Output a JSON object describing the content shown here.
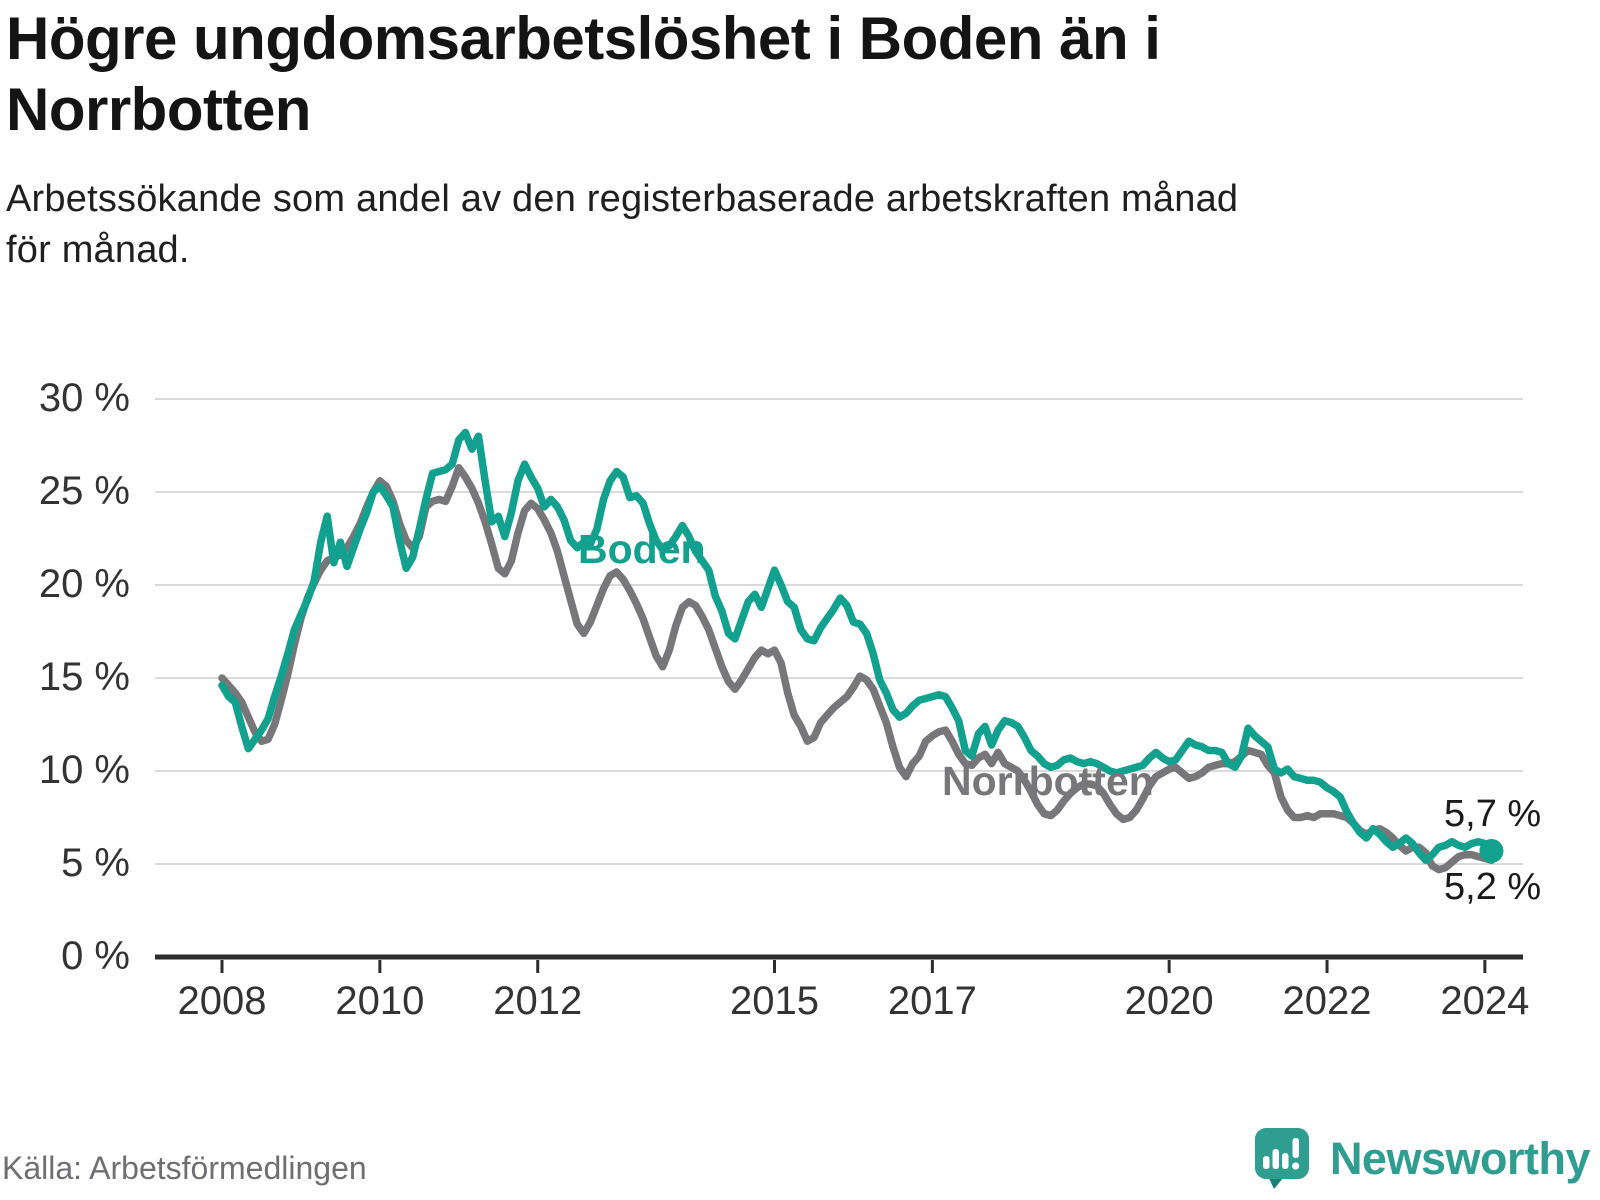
{
  "chart_data": {
    "type": "line",
    "title": "Högre ungdomsarbetslöshet i Boden än i\nNorrbotten",
    "subtitle": "Arbetssökande som andel av den registerbaserade arbetskraften månad\nför månad.",
    "xlabel": "",
    "ylabel": "",
    "ylim": [
      0,
      30
    ],
    "xlim": [
      2008,
      2024.2
    ],
    "grid": "horizontal",
    "legend_position": "inline-labels",
    "x_start": 2008.0,
    "x_step_years": 0.0833333,
    "y_ticks": [
      {
        "value": 30,
        "label": "30 %"
      },
      {
        "value": 25,
        "label": "25 %"
      },
      {
        "value": 20,
        "label": "20 %"
      },
      {
        "value": 15,
        "label": "15 %"
      },
      {
        "value": 10,
        "label": "10 %"
      },
      {
        "value": 5,
        "label": "5 %"
      },
      {
        "value": 0,
        "label": "0 %"
      }
    ],
    "x_ticks": [
      {
        "year": 2008,
        "label": "2008"
      },
      {
        "year": 2010,
        "label": "2010"
      },
      {
        "year": 2012,
        "label": "2012"
      },
      {
        "year": 2015,
        "label": "2015"
      },
      {
        "year": 2017,
        "label": "2017"
      },
      {
        "year": 2020,
        "label": "2020"
      },
      {
        "year": 2022,
        "label": "2022"
      },
      {
        "year": 2024,
        "label": "2024"
      }
    ],
    "series": [
      {
        "name": "Boden",
        "color": "#12a18e",
        "annotation": {
          "text": "Boden"
        },
        "end_label": "5,7 %",
        "end_value": 5.7,
        "end_dot": true,
        "values": [
          14.6,
          14.0,
          13.7,
          12.4,
          11.2,
          11.7,
          12.2,
          12.8,
          14.0,
          15.1,
          16.3,
          17.6,
          18.4,
          19.2,
          20.2,
          22.3,
          23.7,
          21.2,
          22.3,
          21.0,
          22.0,
          23.0,
          23.9,
          25.0,
          25.3,
          24.8,
          24.2,
          22.4,
          20.9,
          21.5,
          23.0,
          24.6,
          26.0,
          26.1,
          26.2,
          26.5,
          27.8,
          28.2,
          27.3,
          28.0,
          25.6,
          23.4,
          23.7,
          22.6,
          23.9,
          25.6,
          26.5,
          25.8,
          25.2,
          24.2,
          24.6,
          24.2,
          23.5,
          22.4,
          22.0,
          22.3,
          22.2,
          23.0,
          24.6,
          25.6,
          26.1,
          25.8,
          24.7,
          24.8,
          24.4,
          23.3,
          22.4,
          21.9,
          22.1,
          22.6,
          23.2,
          22.6,
          21.8,
          21.3,
          20.8,
          19.4,
          18.6,
          17.4,
          17.1,
          18.1,
          19.1,
          19.5,
          18.8,
          19.8,
          20.8,
          20.0,
          19.1,
          18.8,
          17.6,
          17.1,
          17.0,
          17.7,
          18.2,
          18.7,
          19.3,
          18.9,
          18.0,
          17.9,
          17.4,
          16.3,
          14.9,
          14.2,
          13.3,
          12.9,
          13.1,
          13.5,
          13.8,
          13.9,
          14.0,
          14.1,
          14.0,
          13.4,
          12.7,
          11.1,
          10.8,
          12.0,
          12.4,
          11.4,
          12.2,
          12.7,
          12.6,
          12.4,
          11.8,
          11.1,
          10.8,
          10.4,
          10.2,
          10.3,
          10.6,
          10.7,
          10.5,
          10.4,
          10.5,
          10.4,
          10.2,
          10.0,
          9.9,
          10.0,
          10.1,
          10.2,
          10.3,
          10.7,
          11.0,
          10.7,
          10.5,
          10.6,
          11.1,
          11.6,
          11.4,
          11.3,
          11.1,
          11.1,
          11.0,
          10.4,
          10.2,
          10.8,
          12.3,
          11.9,
          11.6,
          11.3,
          10.1,
          9.9,
          10.1,
          9.7,
          9.6,
          9.5,
          9.5,
          9.4,
          9.1,
          8.9,
          8.6,
          7.8,
          7.2,
          6.7,
          6.4,
          6.9,
          6.6,
          6.2,
          5.9,
          6.1,
          6.4,
          6.1,
          5.6,
          5.2,
          5.5,
          5.9,
          6.0,
          6.2,
          6.0,
          5.9,
          6.1,
          6.2,
          6.1,
          5.7
        ]
      },
      {
        "name": "Norrbotten",
        "color": "#77777a",
        "annotation": {
          "text": "Norrbotten"
        },
        "end_label": "5,2 %",
        "end_value": 5.2,
        "end_dot": false,
        "values": [
          15.0,
          14.6,
          14.2,
          13.7,
          12.9,
          12.1,
          11.6,
          11.7,
          12.5,
          13.8,
          15.2,
          16.8,
          18.2,
          19.3,
          20.1,
          20.8,
          21.3,
          21.5,
          21.6,
          22.0,
          22.6,
          23.3,
          24.2,
          25.0,
          25.6,
          25.3,
          24.5,
          23.3,
          22.4,
          22.0,
          22.6,
          24.2,
          24.5,
          24.6,
          24.5,
          25.3,
          26.3,
          25.8,
          25.2,
          24.4,
          23.4,
          22.2,
          20.9,
          20.6,
          21.3,
          22.8,
          24.0,
          24.4,
          24.1,
          23.5,
          22.8,
          21.8,
          20.5,
          19.2,
          17.9,
          17.4,
          18.0,
          18.9,
          19.8,
          20.5,
          20.7,
          20.3,
          19.7,
          19.0,
          18.2,
          17.2,
          16.2,
          15.6,
          16.5,
          17.8,
          18.8,
          19.1,
          18.9,
          18.3,
          17.6,
          16.6,
          15.6,
          14.8,
          14.4,
          14.9,
          15.5,
          16.1,
          16.5,
          16.3,
          16.5,
          15.8,
          14.2,
          13.0,
          12.4,
          11.6,
          11.8,
          12.6,
          13.0,
          13.4,
          13.7,
          14.0,
          14.5,
          15.1,
          14.9,
          14.4,
          13.5,
          12.6,
          11.3,
          10.2,
          9.7,
          10.4,
          10.8,
          11.6,
          11.9,
          12.1,
          12.2,
          11.6,
          10.9,
          10.4,
          10.3,
          10.7,
          10.9,
          10.4,
          11.0,
          10.4,
          10.2,
          10.0,
          9.5,
          8.9,
          8.2,
          7.7,
          7.6,
          7.9,
          8.4,
          8.8,
          9.1,
          9.3,
          9.3,
          9.2,
          8.8,
          8.2,
          7.7,
          7.4,
          7.5,
          7.9,
          8.5,
          9.2,
          9.7,
          9.9,
          10.1,
          10.2,
          9.9,
          9.6,
          9.7,
          9.9,
          10.2,
          10.3,
          10.4,
          10.4,
          10.5,
          10.8,
          11.1,
          11.0,
          10.9,
          10.3,
          9.9,
          8.6,
          7.9,
          7.5,
          7.5,
          7.6,
          7.5,
          7.7,
          7.7,
          7.7,
          7.6,
          7.5,
          7.2,
          6.8,
          6.6,
          6.8,
          6.9,
          6.7,
          6.4,
          6.0,
          5.7,
          5.9,
          5.9,
          5.6,
          4.9,
          4.7,
          4.8,
          5.1,
          5.4,
          5.5,
          5.5,
          5.4,
          5.3,
          5.2
        ]
      }
    ],
    "colors": {
      "accent_teal": "#12a18e",
      "series_gray": "#77777a",
      "axis_dark": "#2d2d2d",
      "gridline": "#dadada",
      "title_text": "#141414",
      "tick_text": "#333333",
      "brand_teal": "#2f9e90"
    }
  },
  "footer": {
    "source": "Källa: Arbetsförmedlingen",
    "brand": "Newsworthy"
  }
}
